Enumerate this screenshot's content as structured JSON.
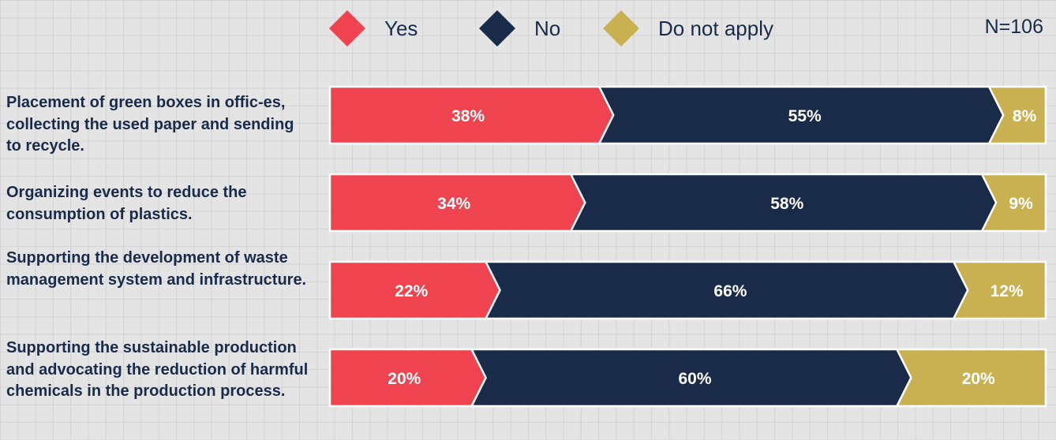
{
  "chart_data": {
    "type": "bar",
    "orientation": "horizontal",
    "stacked": true,
    "note": "N=106",
    "categories": [
      "Placement of green boxes in offic-es, collecting the used paper and sending to recycle.",
      "Organizing events to reduce the consumption of plastics.",
      "Supporting the development of waste management system and infrastructure.",
      "Supporting the sustainable production and advocating the reduction of harmful chemicals in the production process."
    ],
    "series": [
      {
        "name": "Yes",
        "values": [
          38,
          34,
          22,
          20
        ],
        "labels": [
          "38%",
          "34%",
          "22%",
          "20%"
        ],
        "color": "#ef444f"
      },
      {
        "name": "No",
        "values": [
          55,
          58,
          66,
          60
        ],
        "labels": [
          "55%",
          "58%",
          "66%",
          "60%"
        ],
        "color": "#1a2b4a"
      },
      {
        "name": "Do not apply",
        "values": [
          8,
          9,
          12,
          20
        ],
        "labels": [
          "8%",
          "9%",
          "12%",
          "20%"
        ],
        "color": "#c9b152"
      }
    ],
    "xlim": [
      0,
      101
    ],
    "legend_position": "top",
    "grid": true
  }
}
